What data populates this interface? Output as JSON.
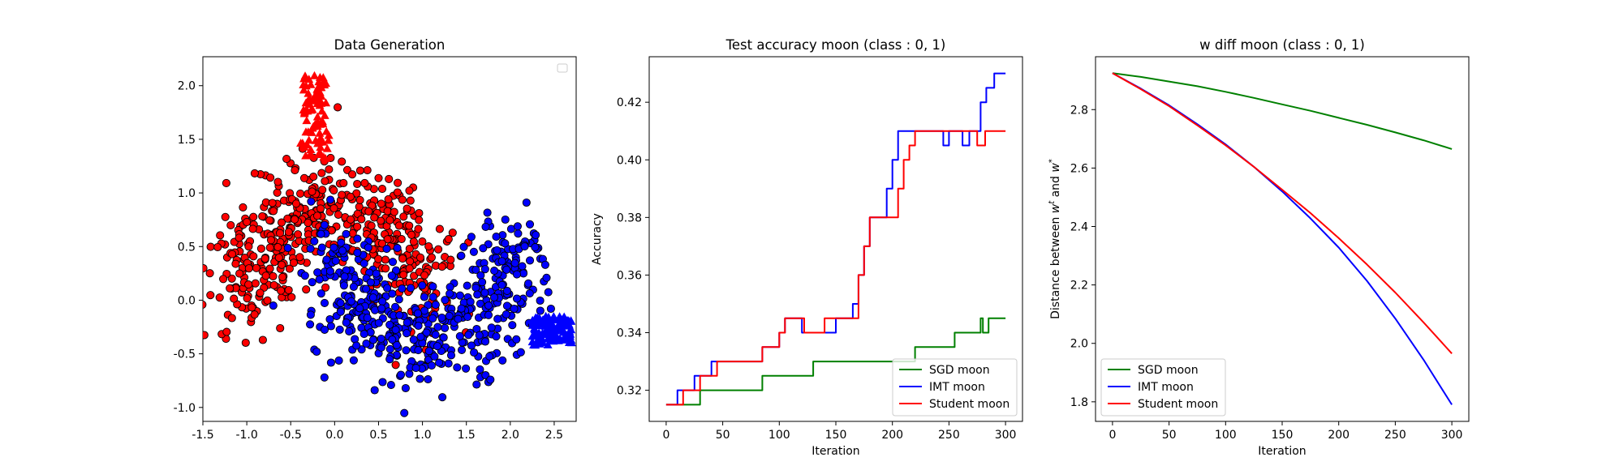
{
  "chart_data": [
    {
      "type": "scatter",
      "title": "Data Generation",
      "xlabel": "",
      "ylabel": "",
      "xlim": [
        -1.5,
        2.75
      ],
      "ylim": [
        -1.13,
        2.27
      ],
      "xticks": [
        -1.5,
        -1.0,
        -0.5,
        0.0,
        0.5,
        1.0,
        1.5,
        2.0,
        2.5
      ],
      "yticks": [
        -1.0,
        -0.5,
        0.0,
        0.5,
        1.0,
        1.5,
        2.0
      ],
      "grid": false,
      "legend": "top-right",
      "legend_entries": [],
      "series": [
        {
          "color": "#ff0000",
          "marker": "circle",
          "edgecolor": "#000000",
          "shape": "upper moon",
          "center_x": 0.0,
          "center_y": 0.0,
          "radius": 1.0,
          "count": 500,
          "noise": 0.25
        },
        {
          "color": "#0000ff",
          "marker": "circle",
          "edgecolor": "#000000",
          "shape": "lower moon",
          "center_x": 1.0,
          "center_y": 0.5,
          "radius": 1.0,
          "count": 500,
          "noise": 0.25
        },
        {
          "color": "#ff0000",
          "marker": "triangle",
          "shape": "cluster",
          "x_range": [
            -0.35,
            -0.1
          ],
          "y_range": [
            1.3,
            2.1
          ],
          "count": 90
        },
        {
          "color": "#0000ff",
          "marker": "triangle",
          "shape": "cluster",
          "x_range": [
            2.25,
            2.7
          ],
          "y_range": [
            -0.42,
            -0.15
          ],
          "count": 110
        }
      ]
    },
    {
      "type": "line",
      "title": "Test accuracy moon (class : 0, 1)",
      "xlabel": "Iteration",
      "ylabel": "Accuracy",
      "xlim": [
        -15,
        315
      ],
      "ylim": [
        0.3092,
        0.4358
      ],
      "xticks": [
        0,
        50,
        100,
        150,
        200,
        250,
        300
      ],
      "yticks": [
        0.32,
        0.34,
        0.36,
        0.38,
        0.4,
        0.42
      ],
      "grid": false,
      "legend": "lower right",
      "series": [
        {
          "name": "SGD moon",
          "color": "#008000",
          "points": [
            [
              0,
              0.315
            ],
            [
              30,
              0.315
            ],
            [
              30,
              0.32
            ],
            [
              85,
              0.32
            ],
            [
              85,
              0.325
            ],
            [
              130,
              0.325
            ],
            [
              130,
              0.33
            ],
            [
              220,
              0.33
            ],
            [
              220,
              0.335
            ],
            [
              255,
              0.335
            ],
            [
              255,
              0.34
            ],
            [
              278,
              0.34
            ],
            [
              278,
              0.345
            ],
            [
              280,
              0.345
            ],
            [
              280,
              0.34
            ],
            [
              285,
              0.34
            ],
            [
              285,
              0.345
            ],
            [
              300,
              0.345
            ]
          ]
        },
        {
          "name": "IMT moon",
          "color": "#0000ff",
          "points": [
            [
              0,
              0.315
            ],
            [
              10,
              0.315
            ],
            [
              10,
              0.32
            ],
            [
              25,
              0.32
            ],
            [
              25,
              0.325
            ],
            [
              40,
              0.325
            ],
            [
              40,
              0.33
            ],
            [
              85,
              0.33
            ],
            [
              85,
              0.335
            ],
            [
              100,
              0.335
            ],
            [
              100,
              0.34
            ],
            [
              105,
              0.34
            ],
            [
              105,
              0.345
            ],
            [
              120,
              0.345
            ],
            [
              120,
              0.34
            ],
            [
              150,
              0.34
            ],
            [
              150,
              0.345
            ],
            [
              165,
              0.345
            ],
            [
              165,
              0.35
            ],
            [
              170,
              0.35
            ],
            [
              170,
              0.36
            ],
            [
              175,
              0.36
            ],
            [
              175,
              0.37
            ],
            [
              180,
              0.37
            ],
            [
              180,
              0.38
            ],
            [
              195,
              0.38
            ],
            [
              195,
              0.39
            ],
            [
              200,
              0.39
            ],
            [
              200,
              0.4
            ],
            [
              205,
              0.4
            ],
            [
              205,
              0.41
            ],
            [
              245,
              0.41
            ],
            [
              245,
              0.405
            ],
            [
              250,
              0.405
            ],
            [
              250,
              0.41
            ],
            [
              262,
              0.41
            ],
            [
              262,
              0.405
            ],
            [
              268,
              0.405
            ],
            [
              268,
              0.41
            ],
            [
              278,
              0.41
            ],
            [
              278,
              0.42
            ],
            [
              283,
              0.42
            ],
            [
              283,
              0.425
            ],
            [
              290,
              0.425
            ],
            [
              290,
              0.43
            ],
            [
              300,
              0.43
            ]
          ]
        },
        {
          "name": "Student moon",
          "color": "#ff0000",
          "points": [
            [
              0,
              0.315
            ],
            [
              15,
              0.315
            ],
            [
              15,
              0.32
            ],
            [
              30,
              0.32
            ],
            [
              30,
              0.325
            ],
            [
              45,
              0.325
            ],
            [
              45,
              0.33
            ],
            [
              85,
              0.33
            ],
            [
              85,
              0.335
            ],
            [
              100,
              0.335
            ],
            [
              100,
              0.34
            ],
            [
              105,
              0.34
            ],
            [
              105,
              0.345
            ],
            [
              122,
              0.345
            ],
            [
              122,
              0.34
            ],
            [
              140,
              0.34
            ],
            [
              140,
              0.345
            ],
            [
              170,
              0.345
            ],
            [
              170,
              0.36
            ],
            [
              175,
              0.36
            ],
            [
              175,
              0.37
            ],
            [
              180,
              0.37
            ],
            [
              180,
              0.38
            ],
            [
              205,
              0.38
            ],
            [
              205,
              0.39
            ],
            [
              210,
              0.39
            ],
            [
              210,
              0.4
            ],
            [
              215,
              0.4
            ],
            [
              215,
              0.405
            ],
            [
              220,
              0.405
            ],
            [
              220,
              0.41
            ],
            [
              275,
              0.41
            ],
            [
              275,
              0.405
            ],
            [
              282,
              0.405
            ],
            [
              282,
              0.41
            ],
            [
              300,
              0.41
            ]
          ]
        }
      ]
    },
    {
      "type": "line",
      "title": "w diff moon (class : 0, 1)",
      "xlabel": "Iteration",
      "ylabel": "Distance between w^t and w^*",
      "ylabel_prefix": "Distance between ",
      "ylabel_w": "w",
      "ylabel_t": "t",
      "ylabel_and": " and ",
      "ylabel_star": "*",
      "xlim": [
        -15,
        315
      ],
      "ylim": [
        1.733,
        2.981
      ],
      "xticks": [
        0,
        50,
        100,
        150,
        200,
        250,
        300
      ],
      "yticks": [
        1.8,
        2.0,
        2.2,
        2.4,
        2.6,
        2.8
      ],
      "grid": false,
      "legend": "lower left",
      "series": [
        {
          "name": "SGD moon",
          "color": "#008000",
          "x": [
            0,
            25,
            50,
            75,
            100,
            125,
            150,
            175,
            200,
            225,
            250,
            275,
            300
          ],
          "values": [
            2.925,
            2.912,
            2.896,
            2.88,
            2.861,
            2.84,
            2.818,
            2.796,
            2.772,
            2.748,
            2.722,
            2.695,
            2.665
          ]
        },
        {
          "name": "IMT moon",
          "color": "#0000ff",
          "x": [
            0,
            25,
            50,
            75,
            100,
            125,
            150,
            175,
            200,
            225,
            250,
            275,
            300
          ],
          "values": [
            2.925,
            2.872,
            2.815,
            2.75,
            2.681,
            2.604,
            2.52,
            2.428,
            2.328,
            2.214,
            2.085,
            1.944,
            1.79
          ]
        },
        {
          "name": "Student moon",
          "color": "#ff0000",
          "x": [
            0,
            25,
            50,
            75,
            100,
            125,
            150,
            175,
            200,
            225,
            250,
            275,
            300
          ],
          "values": [
            2.925,
            2.87,
            2.812,
            2.746,
            2.678,
            2.604,
            2.526,
            2.446,
            2.36,
            2.27,
            2.174,
            2.072,
            1.965
          ]
        }
      ]
    }
  ]
}
